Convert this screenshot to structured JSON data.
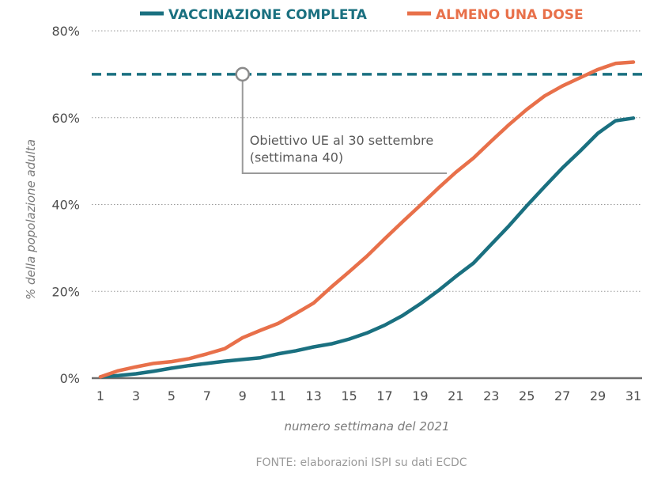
{
  "chart_data": {
    "type": "line",
    "xlabel": "numero settimana del 2021",
    "ylabel": "% della popolazione adulta",
    "xlim": [
      1,
      31
    ],
    "ylim": [
      0,
      80
    ],
    "x_ticks": [
      "1",
      "3",
      "5",
      "7",
      "9",
      "11",
      "13",
      "15",
      "17",
      "19",
      "21",
      "23",
      "25",
      "27",
      "29",
      "31"
    ],
    "y_ticks": [
      "0%",
      "20%",
      "40%",
      "60%",
      "80%"
    ],
    "grid": "horizontal dotted",
    "legend_position": "top",
    "x": [
      1,
      2,
      3,
      4,
      5,
      6,
      7,
      8,
      9,
      10,
      11,
      12,
      13,
      14,
      15,
      16,
      17,
      18,
      19,
      20,
      21,
      22,
      23,
      24,
      25,
      26,
      27,
      28,
      29,
      30,
      31
    ],
    "series": [
      {
        "name": "VACCINAZIONE COMPLETA",
        "color": "#1a7080",
        "values": [
          0.3,
          0.6,
          1.0,
          1.6,
          2.3,
          2.9,
          3.4,
          3.9,
          4.3,
          4.7,
          5.6,
          6.3,
          7.2,
          7.9,
          9.0,
          10.4,
          12.2,
          14.4,
          17.1,
          20.1,
          23.4,
          26.5,
          30.8,
          35.1,
          39.7,
          44.1,
          48.4,
          52.3,
          56.4,
          59.3,
          59.9
        ]
      },
      {
        "name": "ALMENO UNA DOSE",
        "color": "#e8704a",
        "values": [
          0.3,
          1.7,
          2.6,
          3.4,
          3.8,
          4.5,
          5.6,
          6.8,
          9.3,
          11.0,
          12.6,
          14.9,
          17.3,
          21.0,
          24.5,
          28.1,
          32.1,
          36.0,
          39.8,
          43.7,
          47.4,
          50.7,
          54.6,
          58.4,
          61.9,
          65.0,
          67.3,
          69.2,
          71.1,
          72.5,
          72.8
        ]
      }
    ],
    "reference_line": {
      "value": 70,
      "color": "#1a7080",
      "label_line1": "Obiettivo UE al 30 settembre",
      "label_line2": "(settimana 40)"
    },
    "source": "FONTE: elaborazioni ISPI su dati ECDC"
  }
}
